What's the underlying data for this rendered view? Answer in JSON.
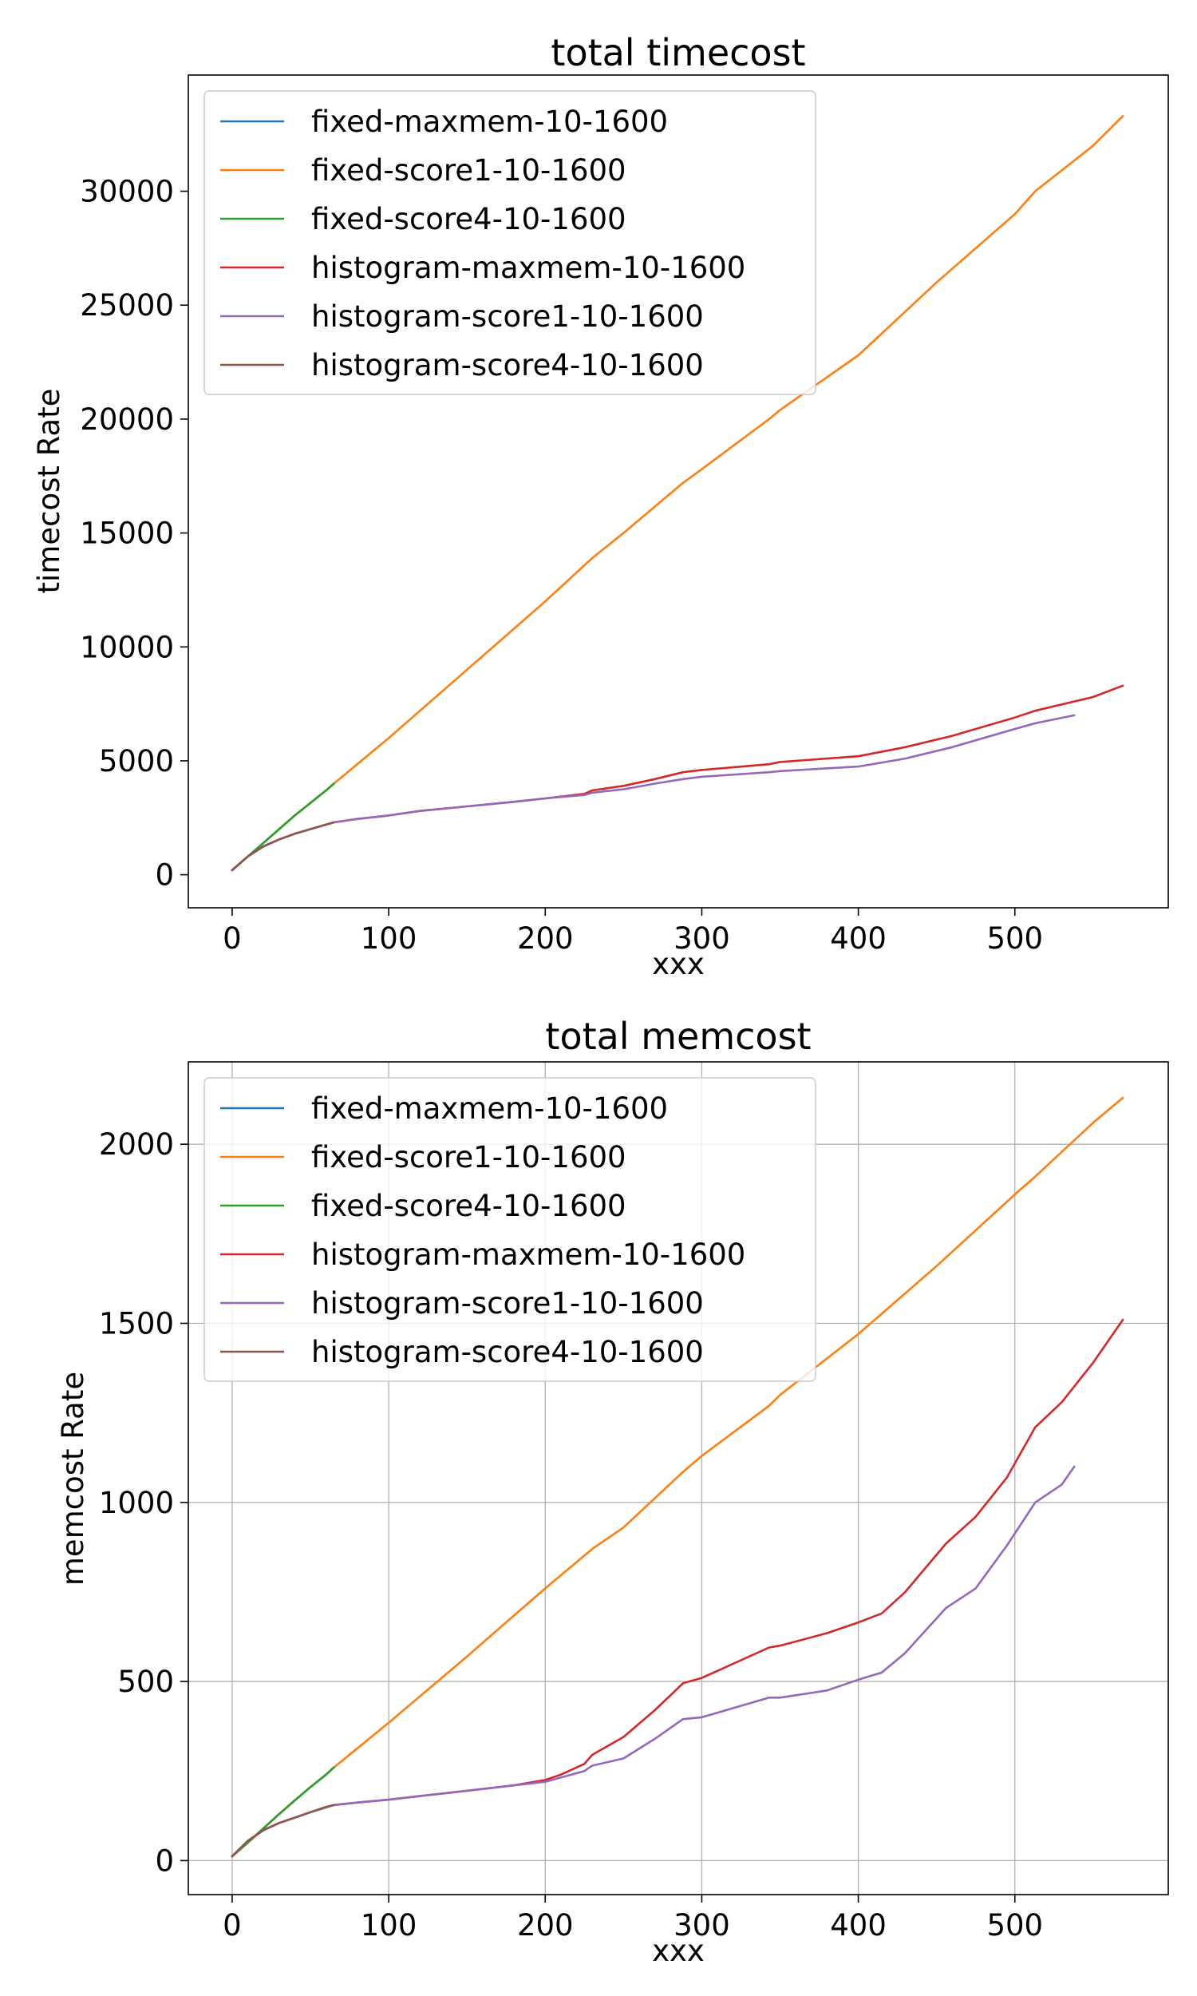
{
  "chart_data": [
    {
      "type": "line",
      "title": "total timecost",
      "xlabel": "xxx",
      "ylabel": "timecost Rate",
      "xlim": [
        -28,
        598
      ],
      "ylim": [
        -1450,
        35100
      ],
      "xticks": [
        0,
        100,
        200,
        300,
        400,
        500
      ],
      "yticks": [
        0,
        5000,
        10000,
        15000,
        20000,
        25000,
        30000
      ],
      "grid": false,
      "legend": "upper-left",
      "series": [
        {
          "name": "fixed-maxmem-10-1600",
          "color": "#1f77b4",
          "x": [
            0,
            10,
            20,
            30,
            40,
            50,
            60,
            65
          ],
          "y": [
            200,
            800,
            1400,
            2000,
            2600,
            3150,
            3700,
            4000
          ]
        },
        {
          "name": "fixed-score1-10-1600",
          "color": "#ff7f0e",
          "x": [
            0,
            10,
            20,
            30,
            40,
            50,
            60,
            65,
            100,
            150,
            200,
            230,
            250,
            288,
            300,
            343,
            350,
            400,
            450,
            500,
            513,
            550,
            569
          ],
          "y": [
            200,
            800,
            1400,
            2000,
            2600,
            3150,
            3700,
            4000,
            6000,
            9000,
            12000,
            13900,
            15000,
            17200,
            17800,
            20000,
            20400,
            22800,
            26000,
            29000,
            30000,
            32000,
            33300
          ]
        },
        {
          "name": "fixed-score4-10-1600",
          "color": "#2ca02c",
          "x": [
            0,
            10,
            20,
            30,
            40,
            50,
            60,
            65
          ],
          "y": [
            200,
            800,
            1400,
            2000,
            2600,
            3150,
            3700,
            4000
          ]
        },
        {
          "name": "histogram-maxmem-10-1600",
          "color": "#d62728",
          "x": [
            0,
            10,
            20,
            30,
            40,
            50,
            65,
            80,
            100,
            120,
            150,
            180,
            200,
            225,
            230,
            250,
            270,
            288,
            300,
            343,
            350,
            400,
            430,
            460,
            500,
            513,
            550,
            569
          ],
          "y": [
            200,
            800,
            1250,
            1550,
            1800,
            2000,
            2300,
            2450,
            2600,
            2800,
            3000,
            3200,
            3350,
            3550,
            3700,
            3900,
            4200,
            4500,
            4600,
            4850,
            4950,
            5200,
            5600,
            6100,
            6900,
            7200,
            7800,
            8300
          ]
        },
        {
          "name": "histogram-score1-10-1600",
          "color": "#9467bd",
          "x": [
            0,
            10,
            20,
            30,
            40,
            50,
            65,
            80,
            100,
            120,
            150,
            180,
            200,
            225,
            230,
            250,
            270,
            288,
            300,
            343,
            350,
            400,
            430,
            460,
            500,
            513,
            538
          ],
          "y": [
            200,
            800,
            1250,
            1550,
            1800,
            2000,
            2300,
            2450,
            2600,
            2800,
            3000,
            3200,
            3350,
            3500,
            3600,
            3750,
            4000,
            4200,
            4300,
            4500,
            4550,
            4750,
            5100,
            5600,
            6400,
            6650,
            7000
          ]
        },
        {
          "name": "histogram-score4-10-1600",
          "color": "#8c564b",
          "x": [
            0,
            10,
            20,
            30,
            40,
            50,
            60,
            65
          ],
          "y": [
            200,
            800,
            1250,
            1550,
            1800,
            2000,
            2200,
            2300
          ]
        }
      ]
    },
    {
      "type": "line",
      "title": "total memcost",
      "xlabel": "xxx",
      "ylabel": "memcost Rate",
      "xlim": [
        -28,
        598
      ],
      "ylim": [
        -95,
        2230
      ],
      "xticks": [
        0,
        100,
        200,
        300,
        400,
        500
      ],
      "yticks": [
        0,
        500,
        1000,
        1500,
        2000
      ],
      "grid": true,
      "legend": "upper-left",
      "series": [
        {
          "name": "fixed-maxmem-10-1600",
          "color": "#1f77b4",
          "x": [
            0,
            10,
            20,
            30,
            40,
            50,
            60,
            65
          ],
          "y": [
            12,
            50,
            90,
            130,
            168,
            205,
            240,
            260
          ]
        },
        {
          "name": "fixed-score1-10-1600",
          "color": "#ff7f0e",
          "x": [
            0,
            10,
            20,
            30,
            40,
            50,
            60,
            65,
            100,
            150,
            200,
            230,
            250,
            288,
            300,
            343,
            350,
            400,
            450,
            500,
            513,
            550,
            569
          ],
          "y": [
            12,
            50,
            90,
            130,
            168,
            205,
            240,
            260,
            385,
            570,
            760,
            870,
            930,
            1085,
            1130,
            1270,
            1300,
            1470,
            1660,
            1860,
            1910,
            2060,
            2130
          ]
        },
        {
          "name": "fixed-score4-10-1600",
          "color": "#2ca02c",
          "x": [
            0,
            10,
            20,
            30,
            40,
            50,
            60,
            65
          ],
          "y": [
            12,
            50,
            90,
            130,
            168,
            205,
            240,
            260
          ]
        },
        {
          "name": "histogram-maxmem-10-1600",
          "color": "#d62728",
          "x": [
            0,
            10,
            20,
            30,
            40,
            50,
            65,
            80,
            100,
            120,
            150,
            180,
            200,
            210,
            225,
            230,
            250,
            270,
            288,
            300,
            343,
            350,
            380,
            400,
            415,
            430,
            456,
            475,
            495,
            513,
            530,
            550,
            569
          ],
          "y": [
            12,
            55,
            85,
            105,
            120,
            135,
            155,
            162,
            170,
            180,
            195,
            210,
            225,
            240,
            270,
            295,
            345,
            420,
            495,
            510,
            595,
            600,
            635,
            665,
            690,
            750,
            885,
            960,
            1070,
            1210,
            1280,
            1390,
            1510
          ]
        },
        {
          "name": "histogram-score1-10-1600",
          "color": "#9467bd",
          "x": [
            0,
            10,
            20,
            30,
            40,
            50,
            65,
            80,
            100,
            120,
            150,
            180,
            200,
            225,
            230,
            250,
            270,
            288,
            300,
            343,
            350,
            380,
            400,
            415,
            430,
            456,
            475,
            495,
            513,
            530,
            538
          ],
          "y": [
            12,
            55,
            85,
            105,
            120,
            135,
            155,
            162,
            170,
            180,
            195,
            210,
            220,
            250,
            265,
            285,
            340,
            395,
            400,
            455,
            455,
            475,
            505,
            525,
            580,
            705,
            760,
            880,
            1000,
            1050,
            1100
          ]
        },
        {
          "name": "histogram-score4-10-1600",
          "color": "#8c564b",
          "x": [
            0,
            10,
            20,
            30,
            40,
            50,
            60,
            65
          ],
          "y": [
            12,
            55,
            85,
            105,
            120,
            135,
            150,
            155
          ]
        }
      ]
    }
  ]
}
